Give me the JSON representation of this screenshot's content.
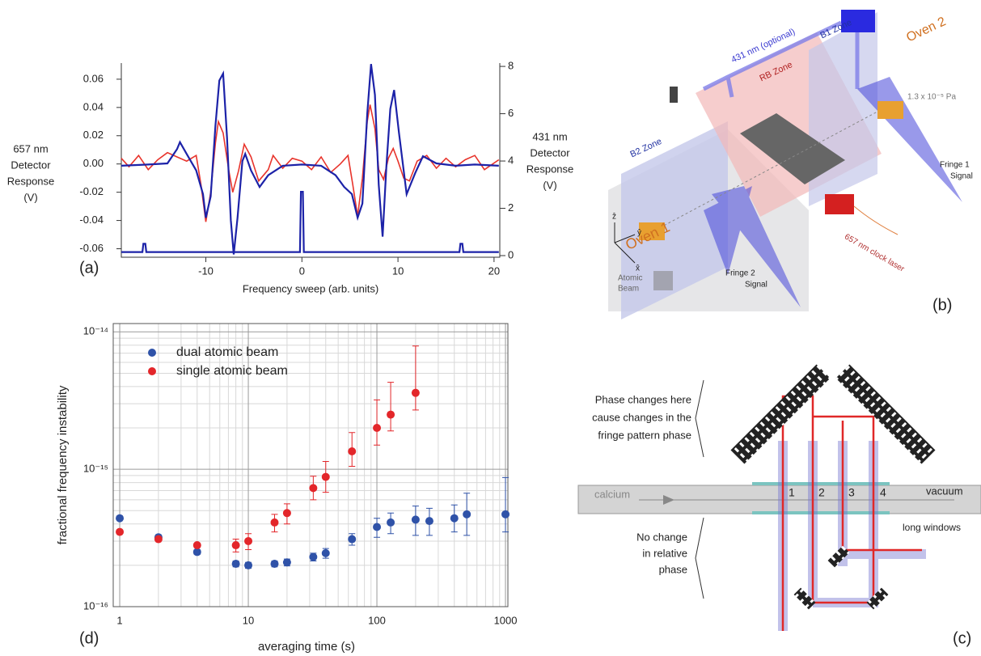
{
  "chart_data": [
    {
      "type": "line",
      "panel_label": "(a)",
      "xlabel": "Frequency sweep (arb. units)",
      "ylabel": [
        "657 nm",
        "Detector",
        "Response",
        "(V)"
      ],
      "y2label": [
        "431 nm",
        "Detector",
        "Response",
        "(V)"
      ],
      "xlim": [
        -18.8,
        20.6
      ],
      "xticks": [
        -10,
        0,
        10,
        20
      ],
      "ylim": [
        -0.066,
        0.0714
      ],
      "yticks": [
        0.06,
        0.04,
        0.02,
        {
          "value": 0,
          "label": "0.00"
        },
        -0.02,
        -0.04,
        -0.06
      ],
      "y2lim": [
        -0.068,
        8.14
      ],
      "y2ticks": [
        0,
        2,
        4,
        6,
        8
      ],
      "series": [
        {
          "color": "#e8342c",
          "axis": "y",
          "x": [
            -18.8,
            -18,
            -17,
            -16,
            -15,
            -14,
            -13,
            -12,
            -11,
            -10.5,
            -10,
            -9.5,
            -9,
            -8.7,
            -8.2,
            -7.6,
            -7.2,
            -6.6,
            -6,
            -5.3,
            -4.5,
            -3.5,
            -3,
            -2,
            -1,
            0,
            1,
            2,
            3,
            4,
            4.8,
            5.3,
            5.8,
            6.3,
            6.8,
            7.1,
            7.6,
            8,
            8.5,
            9,
            9.5,
            10,
            10.6,
            11.2,
            12,
            13,
            14,
            15,
            16,
            17,
            18,
            19,
            20.5
          ],
          "values": [
            0.004,
            -0.002,
            0.006,
            -0.004,
            0.003,
            0.008,
            0.005,
            0.002,
            0.006,
            -0.015,
            -0.041,
            -0.02,
            0.015,
            0.03,
            0.022,
            -0.005,
            -0.02,
            -0.005,
            0.014,
            0.005,
            -0.012,
            -0.004,
            0.006,
            -0.003,
            0.004,
            0.002,
            -0.004,
            0.005,
            -0.006,
            0,
            0.006,
            -0.015,
            -0.037,
            -0.01,
            0.03,
            0.042,
            0.025,
            -0.004,
            -0.011,
            0.004,
            0.011,
            0.002,
            -0.01,
            -0.012,
            0.002,
            0.006,
            -0.003,
            0.004,
            -0.002,
            0.003,
            0.006,
            -0.004,
            0.003
          ]
        },
        {
          "color": "#1c22a8",
          "axis": "y2",
          "x": [
            -18.8,
            -16,
            -14,
            -13,
            -12.7,
            -12,
            -11,
            -10.3,
            -10,
            -9.5,
            -9,
            -8.6,
            -8.2,
            -7.8,
            -7.4,
            -7.1,
            -6.7,
            -6.2,
            -5.9,
            -5.3,
            -4.4,
            -3.5,
            -2,
            0,
            2,
            3.5,
            4.4,
            5.2,
            5.8,
            6.3,
            6.8,
            7.2,
            7.6,
            8,
            8.4,
            8.8,
            9.2,
            9.6,
            10.1,
            10.9,
            11.8,
            12.6,
            14,
            16,
            18,
            20.5
          ],
          "values": [
            3.8,
            3.85,
            3.9,
            4.5,
            4.8,
            4.3,
            3.6,
            2.6,
            1.6,
            2.5,
            5.5,
            7.4,
            7.7,
            5,
            1.5,
            0.05,
            1.6,
            4,
            4.3,
            3.6,
            2.9,
            3.4,
            3.8,
            3.85,
            3.8,
            3.4,
            2.9,
            2.6,
            1.6,
            2.2,
            6,
            8.1,
            6.8,
            3,
            0.8,
            3.8,
            6.2,
            7,
            5.2,
            2.6,
            3.5,
            4.2,
            3.9,
            3.8,
            3.85,
            3.8
          ]
        },
        {
          "color": "#1c22a8",
          "axis": "y2",
          "x": [
            -18.8,
            -16.6,
            -16.5,
            -16.3,
            -16.2,
            -0.2,
            -0.1,
            0.1,
            0.2,
            16.4,
            16.5,
            16.7,
            16.8,
            20.5
          ],
          "values": [
            0.15,
            0.15,
            0.5,
            0.5,
            0.15,
            0.15,
            2.7,
            2.7,
            0.15,
            0.15,
            0.5,
            0.5,
            0.15,
            0.15
          ]
        }
      ]
    },
    {
      "type": "scatter",
      "panel_label": "(d)",
      "log_x": true,
      "log_y": true,
      "grid": true,
      "legend": "upper left",
      "xlabel": "averaging time (s)",
      "ylabel": "fractional frequency instability",
      "xlim": [
        0.89,
        1044
      ],
      "xticks": [
        1,
        10,
        100,
        1000
      ],
      "xminor": [
        2,
        3,
        4,
        5,
        6,
        7,
        8,
        9,
        20,
        30,
        40,
        50,
        60,
        70,
        80,
        90,
        200,
        300,
        400,
        500,
        600,
        700,
        800,
        900
      ],
      "ylim": [
        1e-16,
        1.15e-14
      ],
      "yticks": [
        {
          "value": 1e-16,
          "label": "10⁻¹⁶"
        },
        {
          "value": 1e-15,
          "label": "10⁻¹⁵"
        },
        {
          "value": 1e-14,
          "label": "10⁻¹⁴"
        }
      ],
      "yminor": [
        2e-16,
        3e-16,
        4e-16,
        5e-16,
        6e-16,
        7e-16,
        8e-16,
        9e-16,
        2e-15,
        3e-15,
        4e-15,
        5e-15,
        6e-15,
        7e-15,
        8e-15,
        9e-15
      ],
      "series": [
        {
          "name": "dual atomic beam",
          "color": "#2f52a8",
          "x": [
            1,
            2,
            4,
            8,
            10,
            16,
            20,
            32,
            40,
            64,
            100,
            128,
            200,
            256,
            400,
            500,
            1000
          ],
          "values": [
            4.4e-16,
            3.2e-16,
            2.5e-16,
            2.05e-16,
            2e-16,
            2.05e-16,
            2.1e-16,
            2.3e-16,
            2.45e-16,
            3.1e-16,
            3.8e-16,
            4.1e-16,
            4.3e-16,
            4.2e-16,
            4.4e-16,
            4.7e-16,
            4.7e-16
          ],
          "error_low": [
            1e-17,
            1e-17,
            1e-17,
            1e-17,
            1e-17,
            1e-17,
            1.2e-17,
            1.5e-17,
            2e-17,
            3e-17,
            6e-17,
            7e-17,
            1e-16,
            9e-17,
            9e-17,
            1.4e-16,
            1.2e-16
          ],
          "error_high": [
            1e-17,
            1e-17,
            1e-17,
            1e-17,
            1e-17,
            1e-17,
            1.2e-17,
            1.5e-17,
            2e-17,
            3e-17,
            6e-17,
            7e-17,
            1.1e-16,
            1e-16,
            1.1e-16,
            2e-16,
            4e-16
          ]
        },
        {
          "name": "single atomic beam",
          "color": "#e3262a",
          "x": [
            1,
            2,
            4,
            8,
            10,
            16,
            20,
            32,
            40,
            64,
            100,
            128,
            200
          ],
          "values": [
            3.5e-16,
            3.1e-16,
            2.8e-16,
            2.8e-16,
            3e-16,
            4.1e-16,
            4.8e-16,
            7.3e-16,
            8.8e-16,
            1.35e-15,
            2e-15,
            2.5e-15,
            3.6e-15
          ],
          "error_low": [
            1e-17,
            1e-17,
            1e-17,
            3e-17,
            4e-17,
            6e-17,
            8e-17,
            1.3e-16,
            2e-16,
            3e-16,
            5e-16,
            6e-16,
            9e-16
          ],
          "error_high": [
            1e-17,
            1e-17,
            1e-17,
            3e-17,
            4e-17,
            6e-17,
            8e-17,
            1.6e-16,
            2.6e-16,
            5e-16,
            1.2e-15,
            1.8e-15,
            4.3e-15
          ]
        }
      ]
    }
  ],
  "panel_b": {
    "label": "(b)",
    "beam_431": "431 nm (optional)",
    "b1_zone": "B1 Zone",
    "oven_2": "Oven 2",
    "pressure": "1.3 x 10⁻⁵ Pa",
    "rb_zone": "RB Zone",
    "b2_zone": "B2 Zone",
    "fringe_1": [
      "Fringe 1",
      "Signal"
    ],
    "oven_1": "Oven 1",
    "clock_laser": "657 nm clock laser",
    "fringe_2": [
      "Fringe 2",
      "Signal"
    ],
    "atomic_beam": [
      "Atomic",
      "Beam"
    ],
    "axes": [
      "ẑ",
      "ŷ",
      "x̂"
    ]
  },
  "panel_c": {
    "label": "(c)",
    "top_note": [
      "Phase changes here",
      "cause changes in the",
      "fringe pattern phase"
    ],
    "calcium": "calcium",
    "vacuum": "vacuum",
    "windows": [
      "1",
      "2",
      "3",
      "4"
    ],
    "long_windows": "long windows",
    "bottom_note": [
      "No change",
      "in relative",
      "phase"
    ]
  }
}
